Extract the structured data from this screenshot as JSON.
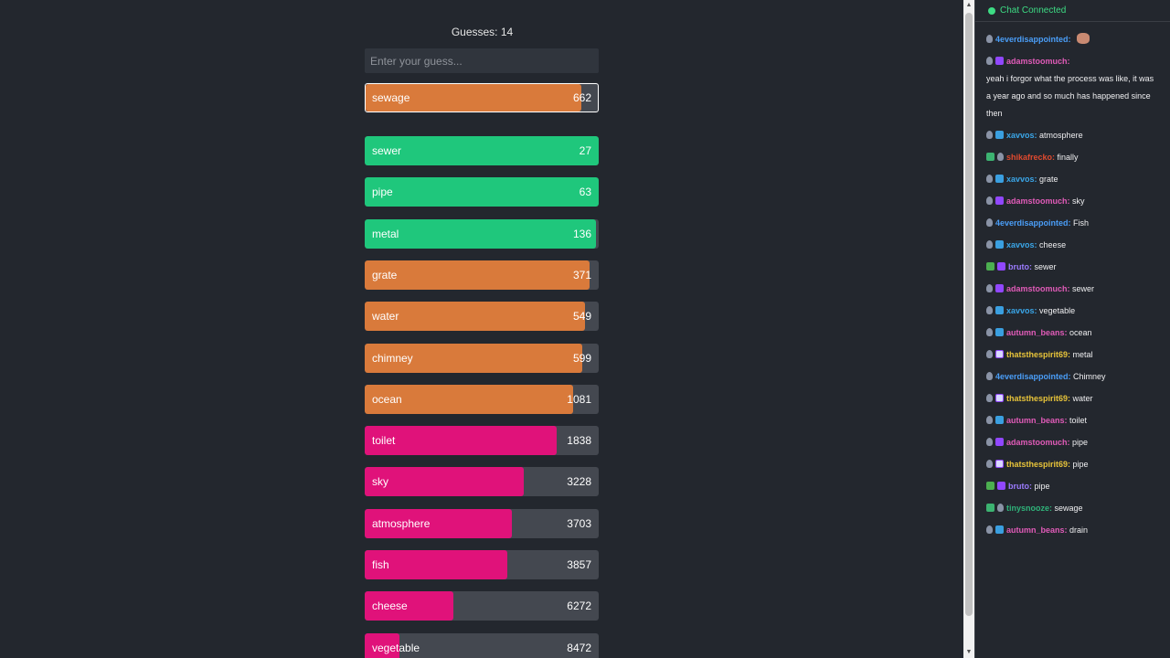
{
  "game": {
    "guess_count_label": "Guesses: 14",
    "input_placeholder": "Enter your guess...",
    "latest": {
      "word": "sewage",
      "rank": "662",
      "fill": 0.93,
      "color": "#d97a3b"
    },
    "guesses": [
      {
        "word": "sewer",
        "rank": "27",
        "fill": 1.0,
        "color": "#1fc77c"
      },
      {
        "word": "pipe",
        "rank": "63",
        "fill": 1.0,
        "color": "#1fc77c"
      },
      {
        "word": "metal",
        "rank": "136",
        "fill": 0.99,
        "color": "#1fc77c"
      },
      {
        "word": "grate",
        "rank": "371",
        "fill": 0.96,
        "color": "#d97a3b"
      },
      {
        "word": "water",
        "rank": "549",
        "fill": 0.94,
        "color": "#d97a3b"
      },
      {
        "word": "chimney",
        "rank": "599",
        "fill": 0.93,
        "color": "#d97a3b"
      },
      {
        "word": "ocean",
        "rank": "1081",
        "fill": 0.89,
        "color": "#d97a3b"
      },
      {
        "word": "toilet",
        "rank": "1838",
        "fill": 0.82,
        "color": "#e0127a"
      },
      {
        "word": "sky",
        "rank": "3228",
        "fill": 0.68,
        "color": "#e0127a"
      },
      {
        "word": "atmosphere",
        "rank": "3703",
        "fill": 0.63,
        "color": "#e0127a"
      },
      {
        "word": "fish",
        "rank": "3857",
        "fill": 0.61,
        "color": "#e0127a"
      },
      {
        "word": "cheese",
        "rank": "6272",
        "fill": 0.38,
        "color": "#e0127a"
      },
      {
        "word": "vegetable",
        "rank": "8472",
        "fill": 0.15,
        "color": "#e0127a"
      }
    ]
  },
  "chat": {
    "status_label": "Chat Connected",
    "status_color": "#3ddc84",
    "messages": [
      {
        "user": "4everdisappointed:",
        "color": "#4a9ef8",
        "text": "",
        "badges": [
          "rank-badge"
        ],
        "emote": true
      },
      {
        "user": "adamstoomuch:",
        "color": "#e05bb8",
        "text": "yeah i forgor what the process was like, it was a year ago and so much has happened since then",
        "badges": [
          "rank-badge",
          "gift"
        ],
        "break": true
      },
      {
        "user": "xavvos:",
        "color": "#3aa6e8",
        "text": "atmosphere",
        "badges": [
          "rank-badge",
          "sub"
        ]
      },
      {
        "user": "shikafrecko:",
        "color": "#e04a2f",
        "text": "finally",
        "badges": [
          "check",
          "rank-badge"
        ]
      },
      {
        "user": "xavvos:",
        "color": "#3aa6e8",
        "text": "grate",
        "badges": [
          "rank-badge",
          "sub"
        ]
      },
      {
        "user": "adamstoomuch:",
        "color": "#e05bb8",
        "text": "sky",
        "badges": [
          "rank-badge",
          "gift"
        ]
      },
      {
        "user": "4everdisappointed:",
        "color": "#4a9ef8",
        "text": "Fish",
        "badges": [
          "rank-badge"
        ]
      },
      {
        "user": "xavvos:",
        "color": "#3aa6e8",
        "text": "cheese",
        "badges": [
          "rank-badge",
          "sub"
        ]
      },
      {
        "user": "bruto:",
        "color": "#9b7bff",
        "text": "sewer",
        "badges": [
          "green",
          "gift"
        ]
      },
      {
        "user": "adamstoomuch:",
        "color": "#e05bb8",
        "text": "sewer",
        "badges": [
          "rank-badge",
          "gift"
        ]
      },
      {
        "user": "xavvos:",
        "color": "#3aa6e8",
        "text": "vegetable",
        "badges": [
          "rank-badge",
          "sub"
        ]
      },
      {
        "user": "autumn_beans:",
        "color": "#e05bb8",
        "text": "ocean",
        "badges": [
          "rank-badge",
          "sub"
        ]
      },
      {
        "user": "thatsthespirit69:",
        "color": "#e8c43a",
        "text": "metal",
        "badges": [
          "rank-badge",
          "prime"
        ]
      },
      {
        "user": "4everdisappointed:",
        "color": "#4a9ef8",
        "text": "Chimney",
        "badges": [
          "rank-badge"
        ]
      },
      {
        "user": "thatsthespirit69:",
        "color": "#e8c43a",
        "text": "water",
        "badges": [
          "rank-badge",
          "prime"
        ]
      },
      {
        "user": "autumn_beans:",
        "color": "#e05bb8",
        "text": "toilet",
        "badges": [
          "rank-badge",
          "sub"
        ]
      },
      {
        "user": "adamstoomuch:",
        "color": "#e05bb8",
        "text": "pipe",
        "badges": [
          "rank-badge",
          "gift"
        ]
      },
      {
        "user": "thatsthespirit69:",
        "color": "#e8c43a",
        "text": "pipe",
        "badges": [
          "rank-badge",
          "prime"
        ]
      },
      {
        "user": "bruto:",
        "color": "#9b7bff",
        "text": "pipe",
        "badges": [
          "green",
          "gift"
        ]
      },
      {
        "user": "tinysnooze:",
        "color": "#2fb37a",
        "text": "sewage",
        "badges": [
          "check",
          "rank-badge"
        ]
      },
      {
        "user": "autumn_beans:",
        "color": "#e05bb8",
        "text": "drain",
        "badges": [
          "rank-badge",
          "sub"
        ]
      }
    ]
  }
}
